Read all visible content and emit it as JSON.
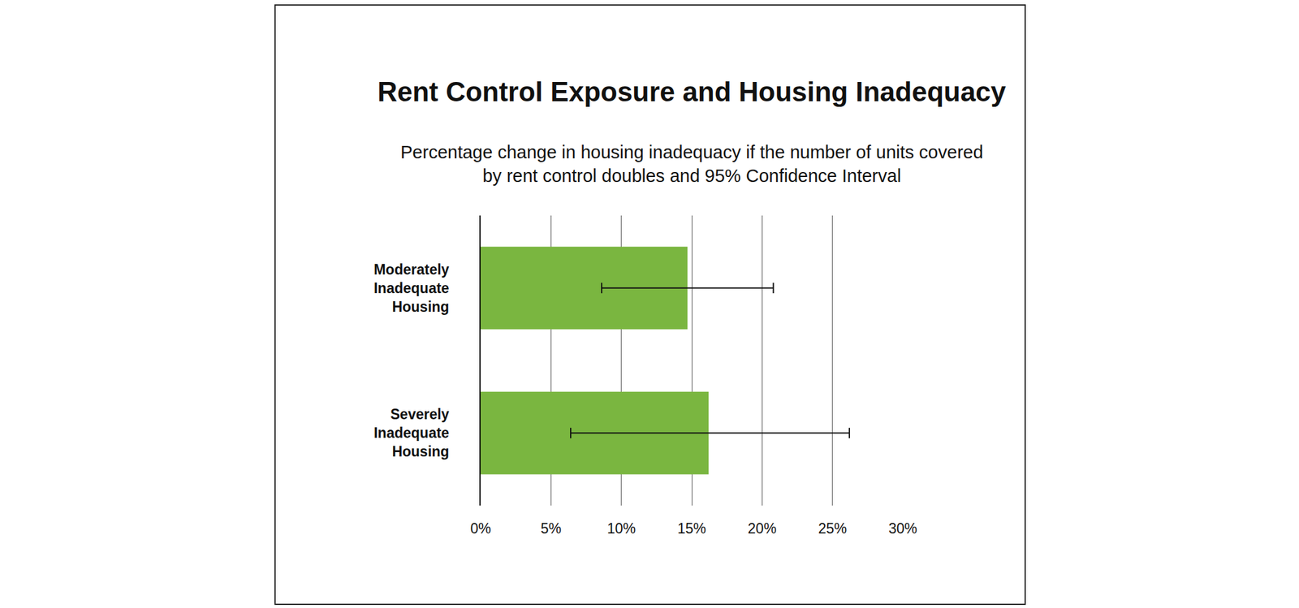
{
  "chart_data": {
    "type": "bar",
    "title": "Rent Control Exposure and Housing Inadequacy",
    "subtitle": [
      "Percentage change in housing inadequacy if the number of units covered",
      "by rent control doubles and 95% Confidence Interval"
    ],
    "categories": [
      "Moderately Inadequate Housing",
      "Severely Inadequate Housing"
    ],
    "values": [
      14.7,
      16.2
    ],
    "ci_low": [
      8.6,
      6.4
    ],
    "ci_high": [
      20.8,
      26.2
    ],
    "color": "#7ab640",
    "orientation": "horizontal",
    "xlim": [
      0,
      30
    ],
    "xticks": [
      {
        "value": 0,
        "label": "0%"
      },
      {
        "value": 5,
        "label": "5%"
      },
      {
        "value": 10,
        "label": "10%"
      },
      {
        "value": 15,
        "label": "15%"
      },
      {
        "value": 20,
        "label": "20%"
      },
      {
        "value": 25,
        "label": "25%"
      },
      {
        "value": 30,
        "label": "30%"
      }
    ],
    "grid": true
  }
}
